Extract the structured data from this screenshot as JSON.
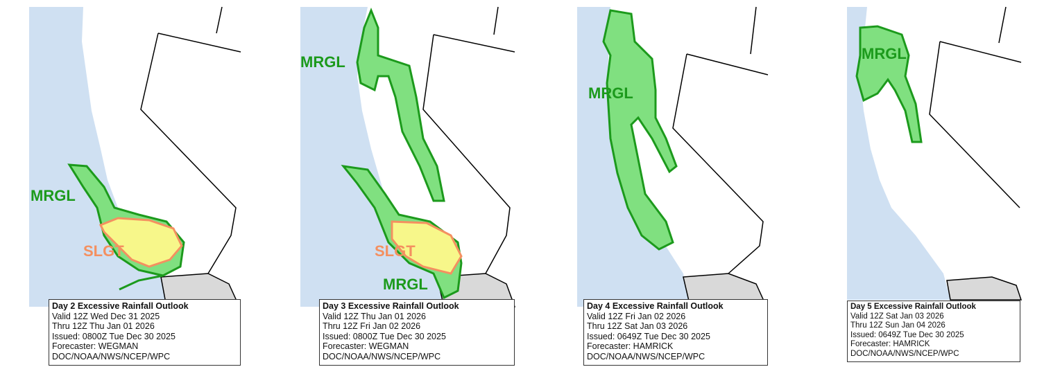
{
  "colors": {
    "ocean": "#cfe0f2",
    "land": "#ffffff",
    "neighbor": "#d9d9d9",
    "mrgl_fill": "#80e080",
    "mrgl_line": "#1c9a1c",
    "slgt_fill": "#f7f78a",
    "slgt_line": "#f49060"
  },
  "panels": [
    {
      "labels": {
        "mrgl": "MRGL",
        "slgt": "SLGT"
      },
      "caption": {
        "title": "Day 2 Excessive Rainfall Outlook",
        "valid": "Valid 12Z Wed Dec 31 2025",
        "thru": "Thru 12Z Thu Jan 01 2026",
        "issued": "Issued: 0800Z Tue Dec 30 2025",
        "forecaster": "Forecaster: WEGMAN",
        "agency": "DOC/NOAA/NWS/NCEP/WPC"
      }
    },
    {
      "labels": {
        "mrgl": "MRGL",
        "slgt": "SLGT",
        "mrgl2": "MRGL"
      },
      "caption": {
        "title": "Day 3 Excessive Rainfall Outlook",
        "valid": "Valid 12Z Thu Jan 01 2026",
        "thru": "Thru 12Z Fri Jan 02 2026",
        "issued": "Issued: 0800Z Tue Dec 30 2025",
        "forecaster": "Forecaster: WEGMAN",
        "agency": "DOC/NOAA/NWS/NCEP/WPC"
      }
    },
    {
      "labels": {
        "mrgl": "MRGL"
      },
      "caption": {
        "title": "Day 4 Excessive Rainfall Outlook",
        "valid": "Valid 12Z Fri Jan 02 2026",
        "thru": "Thru 12Z Sat Jan 03 2026",
        "issued": "Issued: 0649Z Tue Dec 30 2025",
        "forecaster": "Forecaster: HAMRICK",
        "agency": "DOC/NOAA/NWS/NCEP/WPC"
      }
    },
    {
      "labels": {
        "mrgl": "MRGL"
      },
      "caption": {
        "title": "Day 5 Excessive Rainfall Outlook",
        "valid": "Valid 12Z Sat Jan 03 2026",
        "thru": "Thru 12Z Sun Jan 04 2026",
        "issued": "Issued: 0649Z Tue Dec 30 2025",
        "forecaster": "Forecaster: HAMRICK",
        "agency": "DOC/NOAA/NWS/NCEP/WPC"
      }
    }
  ]
}
